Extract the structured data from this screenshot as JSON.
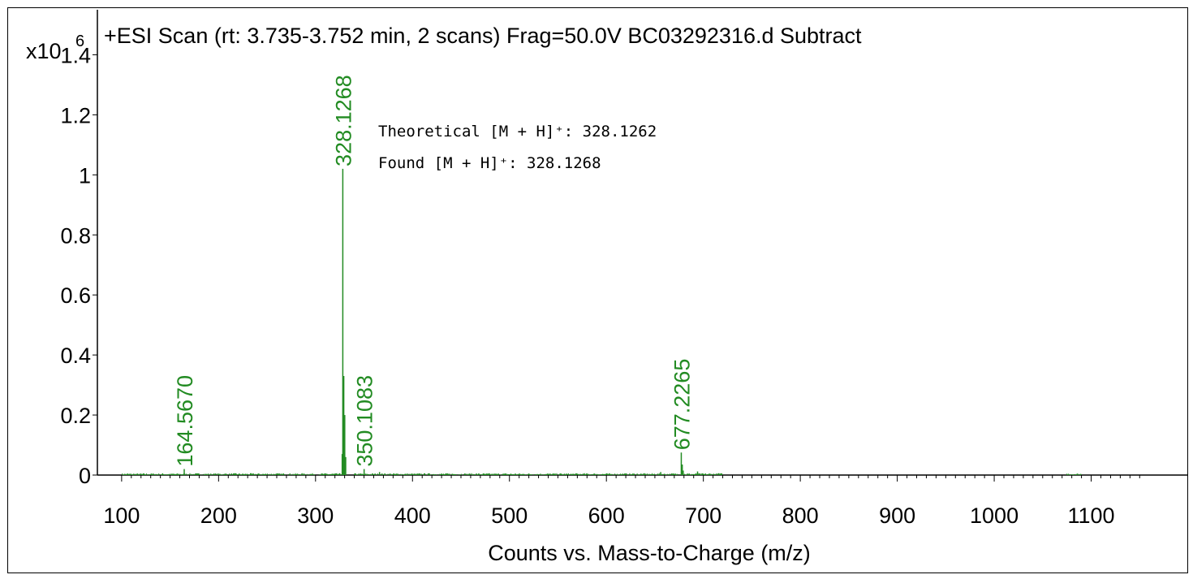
{
  "chart_data": {
    "type": "line",
    "title": "+ESI Scan (rt: 3.735-3.752 min, 2 scans) Frag=50.0V BC03292316.d  Subtract",
    "y_multiplier_label": "x10",
    "y_multiplier_exponent": "6",
    "xlabel": "Counts vs. Mass-to-Charge (m/z)",
    "ylabel": "",
    "xlim": [
      75,
      1200
    ],
    "ylim": [
      0,
      1.55
    ],
    "x_ticks": [
      100,
      200,
      300,
      400,
      500,
      600,
      700,
      800,
      900,
      1000,
      1100
    ],
    "y_ticks": [
      {
        "value": 0,
        "label": "0"
      },
      {
        "value": 0.2,
        "label": "0.2"
      },
      {
        "value": 0.4,
        "label": "0.4"
      },
      {
        "value": 0.6,
        "label": "0.6"
      },
      {
        "value": 0.8,
        "label": "0.8"
      },
      {
        "value": 1.0,
        "label": "1"
      },
      {
        "value": 1.2,
        "label": "1.2"
      },
      {
        "value": 1.4,
        "label": "1.4"
      }
    ],
    "series_color": "#228b22",
    "peaks": [
      {
        "mz": 164.567,
        "intensity": 0.02
      },
      {
        "mz": 327.5,
        "intensity": 0.07
      },
      {
        "mz": 328.1268,
        "intensity": 1.02
      },
      {
        "mz": 329.13,
        "intensity": 0.33
      },
      {
        "mz": 330.13,
        "intensity": 0.2
      },
      {
        "mz": 331.1,
        "intensity": 0.06
      },
      {
        "mz": 350.1083,
        "intensity": 0.02
      },
      {
        "mz": 366.0,
        "intensity": 0.01
      },
      {
        "mz": 656.0,
        "intensity": 0.01
      },
      {
        "mz": 677.2265,
        "intensity": 0.075
      },
      {
        "mz": 678.23,
        "intensity": 0.035
      },
      {
        "mz": 679.2,
        "intensity": 0.015
      },
      {
        "mz": 694.0,
        "intensity": 0.012
      },
      {
        "mz": 716.0,
        "intensity": 0.006
      }
    ],
    "peak_labels": [
      {
        "mz": 164.567,
        "intensity": 0.02,
        "text": "164.5670"
      },
      {
        "mz": 328.1268,
        "intensity": 1.02,
        "text": "328.1268"
      },
      {
        "mz": 350.1083,
        "intensity": 0.02,
        "text": "350.1083"
      },
      {
        "mz": 677.2265,
        "intensity": 0.075,
        "text": "677.2265"
      }
    ],
    "annotations": [
      {
        "text": "Theoretical [M + H]⁺: 328.1262"
      },
      {
        "text": "Found [M + H]⁺: 328.1268"
      }
    ]
  }
}
